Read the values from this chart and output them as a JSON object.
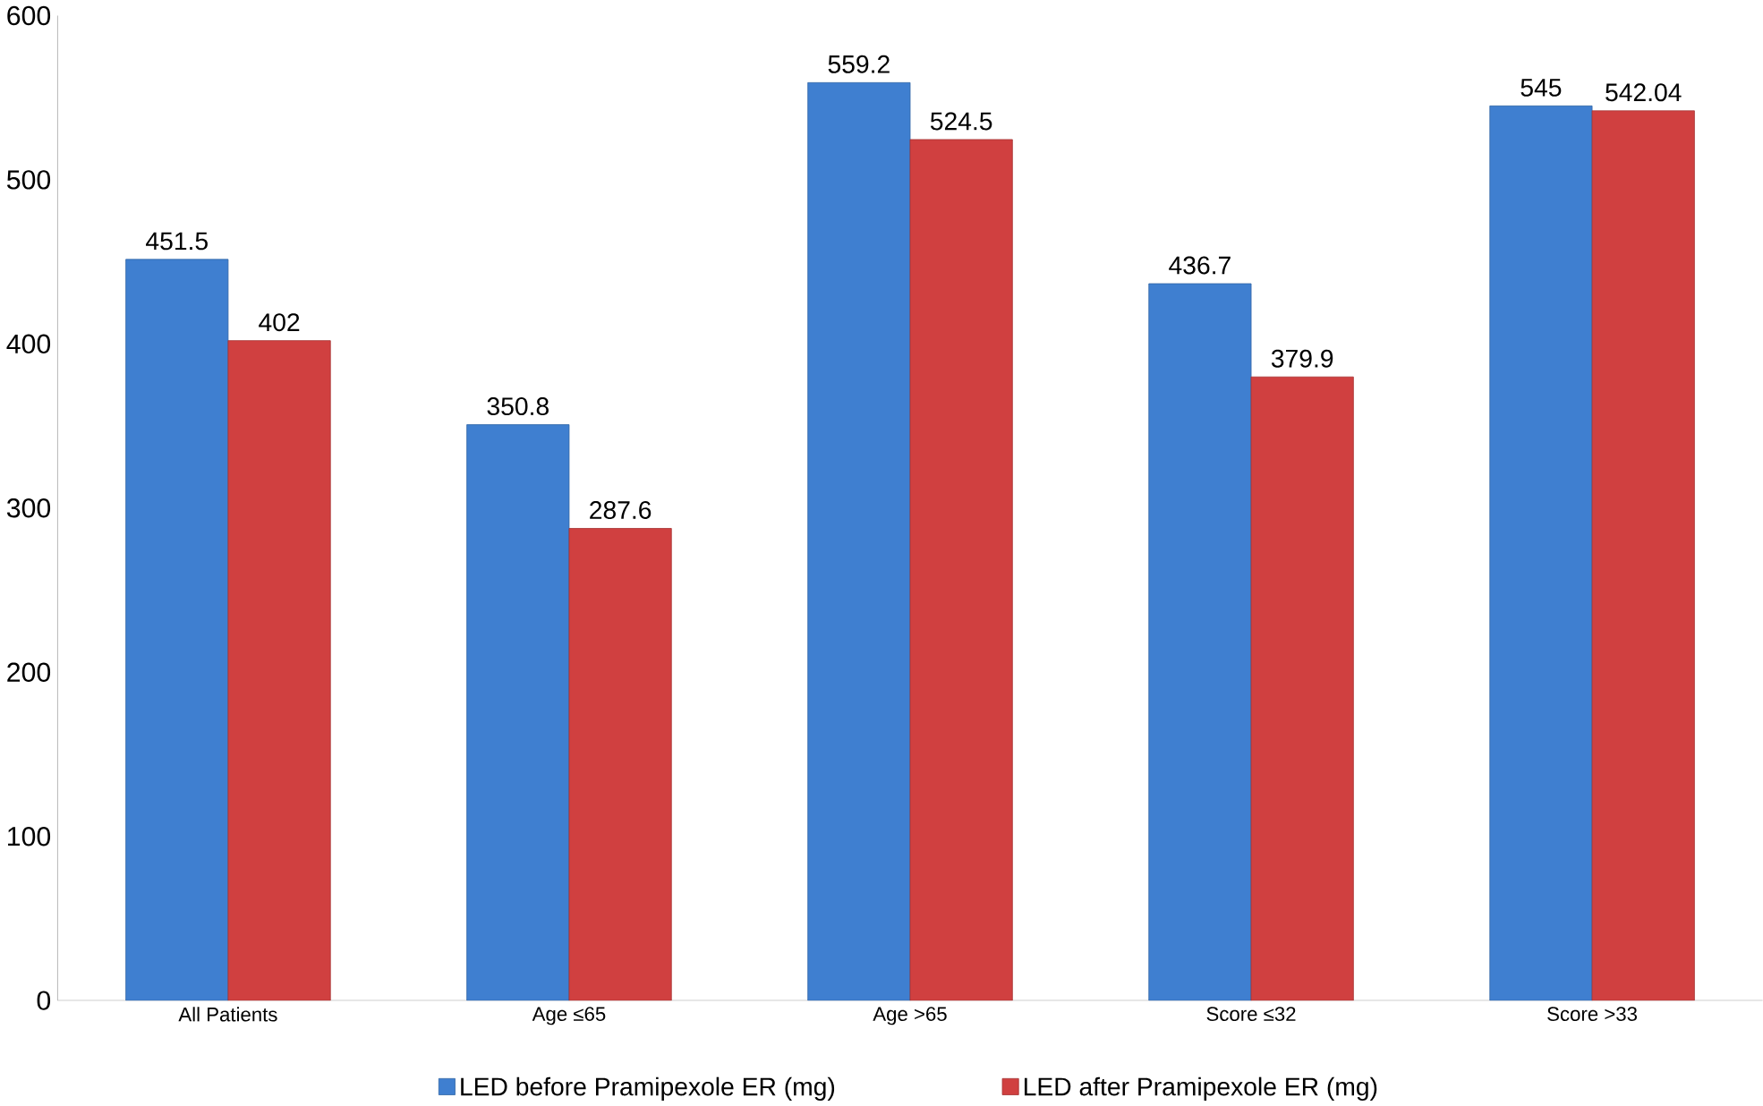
{
  "chart_data": {
    "type": "bar",
    "categories": [
      "All Patients",
      "Age ≤65",
      "Age >65",
      "Score ≤32",
      "Score >33"
    ],
    "series": [
      {
        "name": "LED before Pramipexole ER (mg)",
        "color": "#3f7fd0",
        "values": [
          451.5,
          350.8,
          559.2,
          436.7,
          545
        ]
      },
      {
        "name": "LED after Pramipexole ER (mg)",
        "color": "#d04040",
        "values": [
          402,
          287.6,
          524.5,
          379.9,
          542.04
        ]
      }
    ],
    "ylim": [
      0,
      600
    ],
    "yticks": [
      0,
      100,
      200,
      300,
      400,
      500,
      600
    ],
    "grid": false,
    "legend": "bottom",
    "data_labels": true
  }
}
